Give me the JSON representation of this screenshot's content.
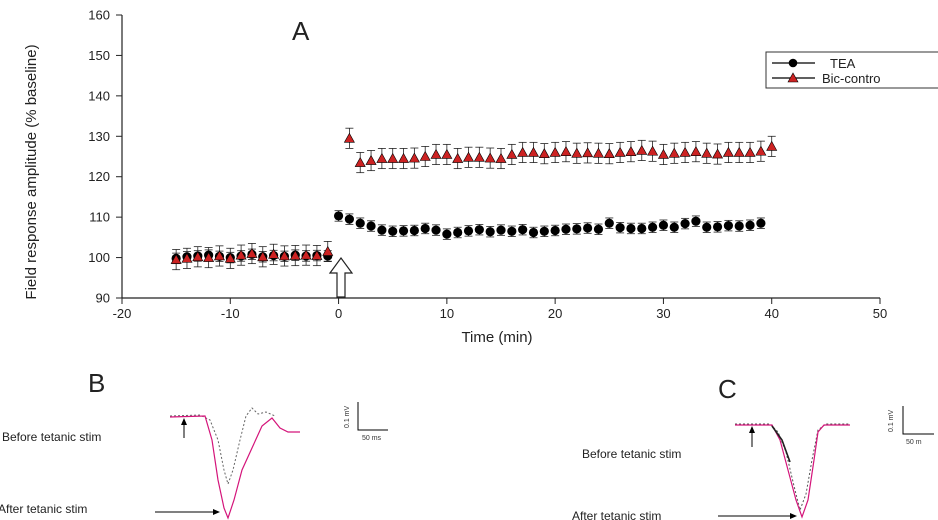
{
  "chart_data": {
    "type": "scatter",
    "panel_labels": [
      "A",
      "B",
      "C"
    ],
    "xlabel": "Time (min)",
    "ylabel": "Field response amplitude (% baseline)",
    "xlim": [
      -20,
      50
    ],
    "ylim": [
      90,
      160
    ],
    "xticks": [
      -20,
      -10,
      0,
      10,
      20,
      30,
      40,
      50
    ],
    "yticks": [
      90,
      100,
      110,
      120,
      130,
      140,
      150,
      160
    ],
    "legend_position": "top-right",
    "grid": false,
    "colors": {
      "tea": "#000000",
      "bic": "#cc2222"
    },
    "series": [
      {
        "name": "TEA",
        "marker": "circle",
        "x": [
          -15,
          -14,
          -13,
          -12,
          -11,
          -10,
          -9,
          -8,
          -7,
          -6,
          -5,
          -4,
          -3,
          -2,
          -1,
          0,
          1,
          2,
          3,
          4,
          5,
          6,
          7,
          8,
          9,
          10,
          11,
          12,
          13,
          14,
          15,
          16,
          17,
          18,
          19,
          20,
          21,
          22,
          23,
          24,
          25,
          26,
          27,
          28,
          29,
          30,
          31,
          32,
          33,
          34,
          35,
          36,
          37,
          38,
          39
        ],
        "y": [
          99.8,
          100.2,
          100.4,
          100.6,
          100.3,
          100.0,
          100.4,
          100.8,
          100.2,
          100.5,
          100.3,
          100.6,
          100.4,
          100.5,
          100.4,
          110.3,
          109.5,
          108.5,
          107.8,
          106.8,
          106.5,
          106.6,
          106.7,
          107.2,
          106.8,
          105.8,
          106.2,
          106.6,
          106.9,
          106.4,
          106.8,
          106.5,
          106.9,
          106.2,
          106.5,
          106.7,
          107.0,
          107.1,
          107.3,
          107.0,
          108.5,
          107.4,
          107.2,
          107.2,
          107.5,
          108.0,
          107.5,
          108.4,
          109.0,
          107.5,
          107.6,
          107.9,
          107.8,
          108.0,
          108.5
        ],
        "error": 1.3
      },
      {
        "name": "Bic-contro",
        "marker": "triangle",
        "x": [
          -15,
          -14,
          -13,
          -12,
          -11,
          -10,
          -9,
          -8,
          -7,
          -6,
          -5,
          -4,
          -3,
          -2,
          -1,
          1,
          2,
          3,
          4,
          5,
          6,
          7,
          8,
          9,
          10,
          11,
          12,
          13,
          14,
          15,
          16,
          17,
          18,
          19,
          20,
          21,
          22,
          23,
          24,
          25,
          26,
          27,
          28,
          29,
          30,
          31,
          32,
          33,
          34,
          35,
          36,
          37,
          38,
          39,
          40
        ],
        "y": [
          99.5,
          99.8,
          100.2,
          100.0,
          100.4,
          99.8,
          100.6,
          101.0,
          100.2,
          100.8,
          100.4,
          100.5,
          100.6,
          100.5,
          101.5,
          129.5,
          123.5,
          124.0,
          124.5,
          124.5,
          124.5,
          124.6,
          125.0,
          125.5,
          125.5,
          124.5,
          124.8,
          124.8,
          124.6,
          124.5,
          125.5,
          126.0,
          126.0,
          125.7,
          126.0,
          126.2,
          125.8,
          125.9,
          125.8,
          125.7,
          126.0,
          126.2,
          126.5,
          126.3,
          125.5,
          125.8,
          126.0,
          126.2,
          125.8,
          125.6,
          126.0,
          126.0,
          126.0,
          126.3,
          127.5
        ],
        "error": 2.5
      }
    ],
    "stimulus_marker_x": 0,
    "annotations": [
      "Before tetanic stim",
      "After tetanic stim",
      "Before tetanic stim",
      "After tetanic stim"
    ],
    "scale_bar_labels": [
      "0.1 mV",
      "50 ms",
      "0.1 mV",
      "50 m"
    ]
  }
}
